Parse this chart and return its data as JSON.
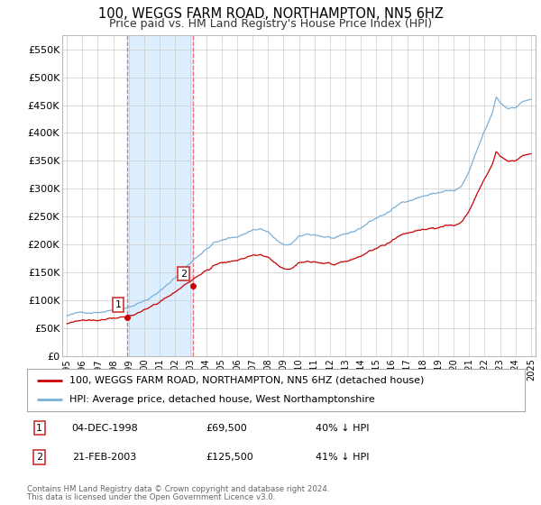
{
  "title": "100, WEGGS FARM ROAD, NORTHAMPTON, NN5 6HZ",
  "subtitle": "Price paid vs. HM Land Registry's House Price Index (HPI)",
  "ylabel_ticks": [
    "£0",
    "£50K",
    "£100K",
    "£150K",
    "£200K",
    "£250K",
    "£300K",
    "£350K",
    "£400K",
    "£450K",
    "£500K",
    "£550K"
  ],
  "ylim": [
    0,
    575000
  ],
  "sale1_date_num": 1998.92,
  "sale1_price": 69500,
  "sale2_date_num": 2003.13,
  "sale2_price": 125500,
  "sale1_label": "1",
  "sale2_label": "2",
  "dashed_color": "#e87070",
  "shade_color": "#ddeeff",
  "line_red_color": "#cc0000",
  "line_blue_color": "#7ab0d8",
  "legend_line1": "100, WEGGS FARM ROAD, NORTHAMPTON, NN5 6HZ (detached house)",
  "legend_line2": "HPI: Average price, detached house, West Northamptonshire",
  "table_row1": [
    "1",
    "04-DEC-1998",
    "£69,500",
    "40% ↓ HPI"
  ],
  "table_row2": [
    "2",
    "21-FEB-2003",
    "£125,500",
    "41% ↓ HPI"
  ],
  "footnote1": "Contains HM Land Registry data © Crown copyright and database right 2024.",
  "footnote2": "This data is licensed under the Open Government Licence v3.0.",
  "bg_color": "#ffffff",
  "grid_color": "#cccccc"
}
